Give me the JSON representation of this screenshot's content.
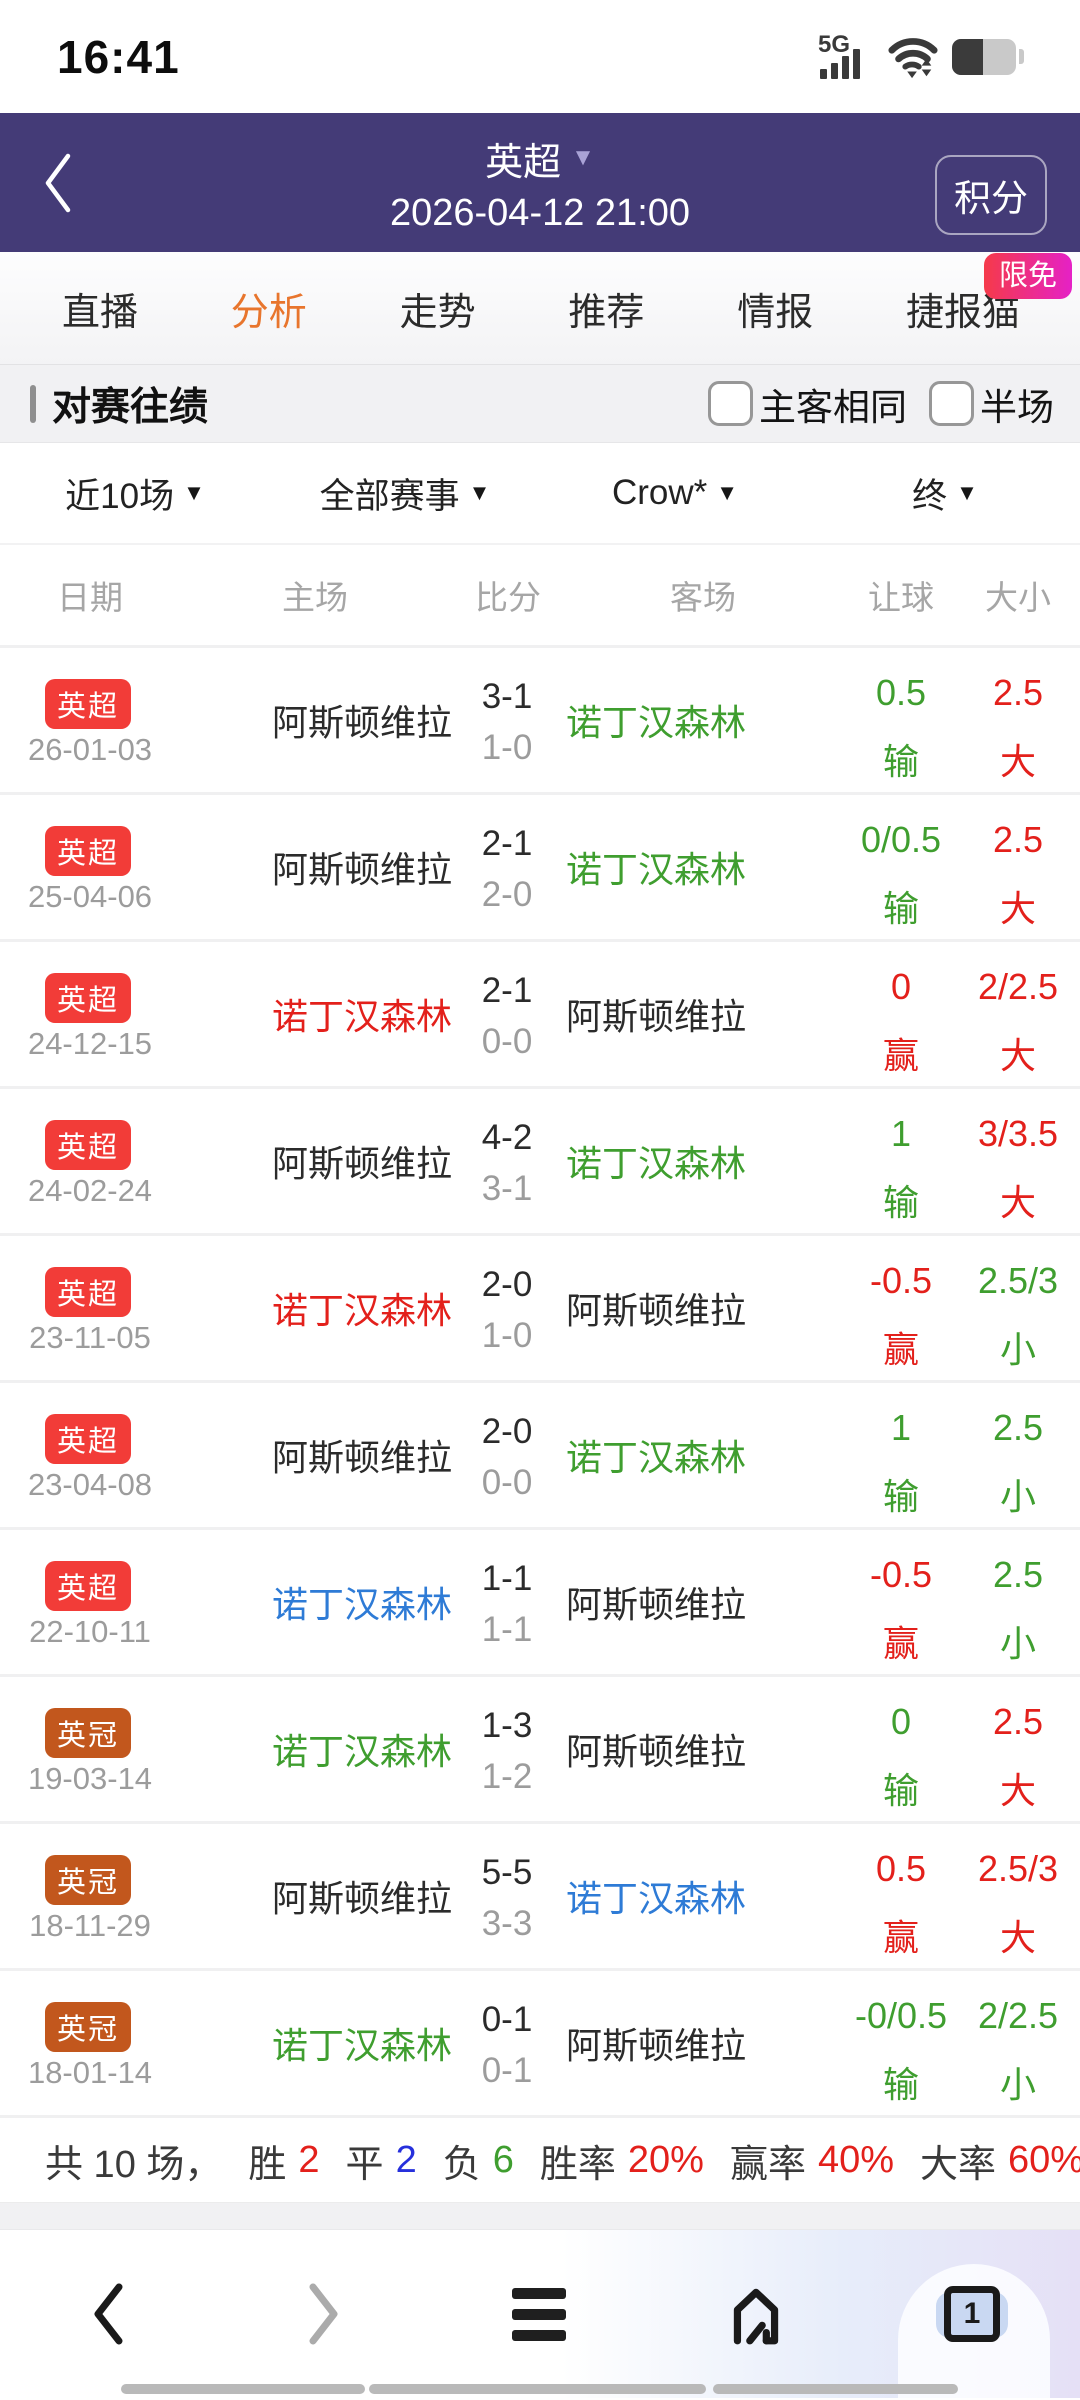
{
  "colors": {
    "header_purple": "#443b77",
    "accent_orange": "#e8752d",
    "red": "#e3201b",
    "green": "#3f9e2f",
    "blue": "#2e7bd6",
    "blue_deep": "#2630dc",
    "dark": "#2b2b2b",
    "gray": "#9c9c9c",
    "badge_epl": "#f23c38",
    "badge_champ": "#c2571d"
  },
  "status_bar": {
    "time": "16:41",
    "network_label": "5G"
  },
  "header": {
    "league": "英超",
    "datetime": "2026-04-12 21:00",
    "points_button": "积分"
  },
  "tab_bar": {
    "tabs": [
      {
        "label": "直播",
        "active": false
      },
      {
        "label": "分析",
        "active": true
      },
      {
        "label": "走势",
        "active": false
      },
      {
        "label": "推荐",
        "active": false
      },
      {
        "label": "情报",
        "active": false
      },
      {
        "label": "捷报猫",
        "active": false
      }
    ],
    "promo_badge": "限免"
  },
  "section": {
    "title": "对赛往绩",
    "checkboxes": [
      {
        "label": "主客相同",
        "checked": false
      },
      {
        "label": "半场",
        "checked": false
      }
    ]
  },
  "filters": [
    {
      "label": "近10场"
    },
    {
      "label": "全部赛事"
    },
    {
      "label": "Crow*"
    },
    {
      "label": "终"
    }
  ],
  "table": {
    "headers": [
      "日期",
      "主场",
      "比分",
      "客场",
      "让球",
      "大小"
    ],
    "header_centers": [
      90,
      315,
      508,
      703,
      901,
      1018
    ],
    "rows": [
      {
        "league": "英超",
        "league_c": "badge_epl",
        "date": "26-01-03",
        "home": "阿斯顿维拉",
        "home_c": "dark",
        "score": "3-1",
        "half": "1-0",
        "away": "诺丁汉森林",
        "away_c": "green",
        "handicap": "0.5",
        "handicap_res": "输",
        "handicap_c": "green",
        "ou": "2.5",
        "ou_res": "大",
        "ou_c": "red"
      },
      {
        "league": "英超",
        "league_c": "badge_epl",
        "date": "25-04-06",
        "home": "阿斯顿维拉",
        "home_c": "dark",
        "score": "2-1",
        "half": "2-0",
        "away": "诺丁汉森林",
        "away_c": "green",
        "handicap": "0/0.5",
        "handicap_res": "输",
        "handicap_c": "green",
        "ou": "2.5",
        "ou_res": "大",
        "ou_c": "red"
      },
      {
        "league": "英超",
        "league_c": "badge_epl",
        "date": "24-12-15",
        "home": "诺丁汉森林",
        "home_c": "red",
        "score": "2-1",
        "half": "0-0",
        "away": "阿斯顿维拉",
        "away_c": "dark",
        "handicap": "0",
        "handicap_res": "赢",
        "handicap_c": "red",
        "ou": "2/2.5",
        "ou_res": "大",
        "ou_c": "red"
      },
      {
        "league": "英超",
        "league_c": "badge_epl",
        "date": "24-02-24",
        "home": "阿斯顿维拉",
        "home_c": "dark",
        "score": "4-2",
        "half": "3-1",
        "away": "诺丁汉森林",
        "away_c": "green",
        "handicap": "1",
        "handicap_res": "输",
        "handicap_c": "green",
        "ou": "3/3.5",
        "ou_res": "大",
        "ou_c": "red"
      },
      {
        "league": "英超",
        "league_c": "badge_epl",
        "date": "23-11-05",
        "home": "诺丁汉森林",
        "home_c": "red",
        "score": "2-0",
        "half": "1-0",
        "away": "阿斯顿维拉",
        "away_c": "dark",
        "handicap": "-0.5",
        "handicap_res": "赢",
        "handicap_c": "red",
        "ou": "2.5/3",
        "ou_res": "小",
        "ou_c": "green"
      },
      {
        "league": "英超",
        "league_c": "badge_epl",
        "date": "23-04-08",
        "home": "阿斯顿维拉",
        "home_c": "dark",
        "score": "2-0",
        "half": "0-0",
        "away": "诺丁汉森林",
        "away_c": "green",
        "handicap": "1",
        "handicap_res": "输",
        "handicap_c": "green",
        "ou": "2.5",
        "ou_res": "小",
        "ou_c": "green"
      },
      {
        "league": "英超",
        "league_c": "badge_epl",
        "date": "22-10-11",
        "home": "诺丁汉森林",
        "home_c": "blue",
        "score": "1-1",
        "half": "1-1",
        "away": "阿斯顿维拉",
        "away_c": "dark",
        "handicap": "-0.5",
        "handicap_res": "赢",
        "handicap_c": "red",
        "ou": "2.5",
        "ou_res": "小",
        "ou_c": "green"
      },
      {
        "league": "英冠",
        "league_c": "badge_champ",
        "date": "19-03-14",
        "home": "诺丁汉森林",
        "home_c": "green",
        "score": "1-3",
        "half": "1-2",
        "away": "阿斯顿维拉",
        "away_c": "dark",
        "handicap": "0",
        "handicap_res": "输",
        "handicap_c": "green",
        "ou": "2.5",
        "ou_res": "大",
        "ou_c": "red"
      },
      {
        "league": "英冠",
        "league_c": "badge_champ",
        "date": "18-11-29",
        "home": "阿斯顿维拉",
        "home_c": "dark",
        "score": "5-5",
        "half": "3-3",
        "away": "诺丁汉森林",
        "away_c": "blue",
        "handicap": "0.5",
        "handicap_res": "赢",
        "handicap_c": "red",
        "ou": "2.5/3",
        "ou_res": "大",
        "ou_c": "red"
      },
      {
        "league": "英冠",
        "league_c": "badge_champ",
        "date": "18-01-14",
        "home": "诺丁汉森林",
        "home_c": "green",
        "score": "0-1",
        "half": "0-1",
        "away": "阿斯顿维拉",
        "away_c": "dark",
        "handicap": "-0/0.5",
        "handicap_res": "输",
        "handicap_c": "green",
        "ou": "2/2.5",
        "ou_res": "小",
        "ou_c": "green"
      }
    ]
  },
  "summary": {
    "segments": [
      {
        "label": "共 10 场，"
      },
      {
        "label": "胜",
        "value": "2",
        "value_c": "red"
      },
      {
        "label": "平",
        "value": "2",
        "value_c": "blue_deep"
      },
      {
        "label": "负",
        "value": "6",
        "value_c": "green"
      },
      {
        "label": "胜率",
        "value": "20%",
        "value_c": "red"
      },
      {
        "label": "赢率",
        "value": "40%",
        "value_c": "red"
      },
      {
        "label": "大率",
        "value": "60%",
        "value_c": "red"
      }
    ]
  },
  "nav_bar": {
    "tab_count": "1"
  }
}
